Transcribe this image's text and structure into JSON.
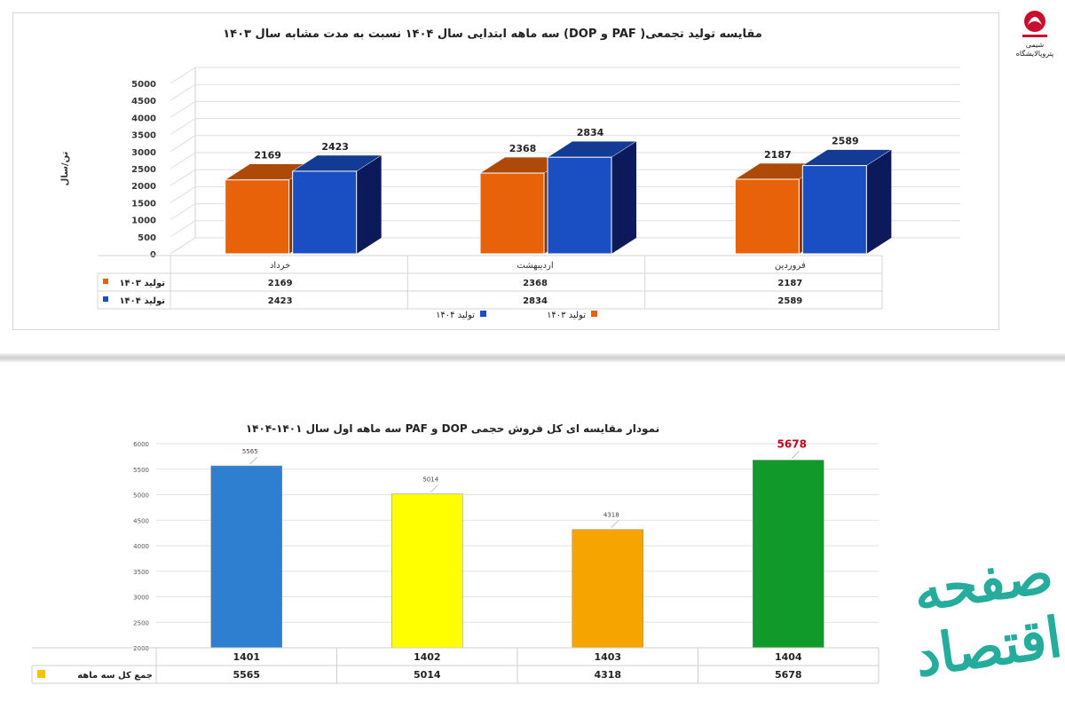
{
  "logo": {
    "caption": "شیمی پتروپالایشگاه",
    "colors": [
      "#c8102e",
      "#1a1a1a"
    ]
  },
  "watermark": {
    "text": "صفحه اقتصاد",
    "color": "#1aa897"
  },
  "chart_data": [
    {
      "type": "bar",
      "title": "مقایسه تولید تجمعی( PAF و DOP) سه ماهه ابتدایی سال ۱۴۰۴ نسبت به مدت مشابه سال ۱۴۰۳",
      "ylabel": "تن/سال",
      "xlabel": "",
      "ylim": [
        0,
        5000
      ],
      "yticks": [
        0,
        500,
        1000,
        1500,
        2000,
        2500,
        3000,
        3500,
        4000,
        4500,
        5000
      ],
      "categories": [
        "فروردین",
        "اردیبهشت",
        "خرداد"
      ],
      "series": [
        {
          "name": "تولید ۱۴۰۳",
          "values": [
            2187,
            2368,
            2169
          ],
          "color": "#e8620a"
        },
        {
          "name": "تولید ۱۴۰۴",
          "values": [
            2589,
            2834,
            2423
          ],
          "color": "#1a4fc4"
        }
      ],
      "legend": "bottom",
      "data_table": true,
      "grid": true
    },
    {
      "type": "bar",
      "title": "نمودار مقایسه ای کل فروش حجمی DOP و PAF سه ماهه اول سال ۱۴۰۱-۱۴۰۴",
      "xlabel": "",
      "ylabel": "",
      "ylim": [
        2000,
        6000
      ],
      "yticks": [
        2000,
        2500,
        3000,
        3500,
        4000,
        4500,
        5000,
        5500,
        6000
      ],
      "categories": [
        "1401",
        "1402",
        "1403",
        "1404"
      ],
      "series": [
        {
          "name": "جمع کل سه ماهه",
          "values": [
            5565,
            5014,
            4318,
            5678
          ]
        }
      ],
      "bar_colors": [
        "#2e7fd0",
        "#ffff00",
        "#f5a400",
        "#0f9a2a"
      ],
      "legend_color": "#f5c400",
      "highlight_label_color": "#c0001a",
      "legend": "table",
      "data_table": true,
      "grid": true
    }
  ]
}
